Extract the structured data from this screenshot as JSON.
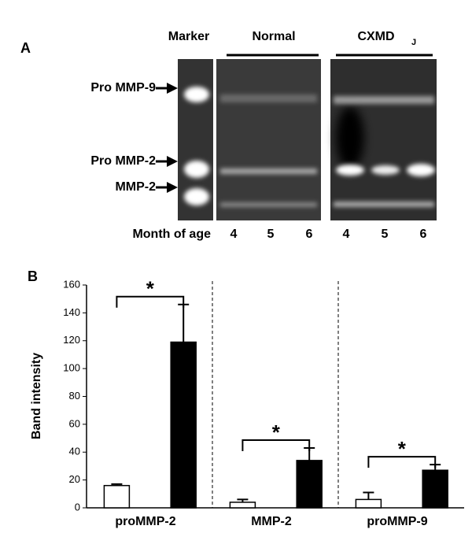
{
  "panel_a": {
    "label": "A",
    "marker": "Marker",
    "normal": "Normal",
    "cxmd": "CXMD",
    "cxmd_sub": "J",
    "bands": [
      "Pro MMP-9",
      "Pro MMP-2",
      "MMP-2"
    ],
    "month_label": "Month of age",
    "months": [
      4,
      5,
      6,
      4,
      5,
      6
    ]
  },
  "chart_data": {
    "type": "bar",
    "panel_label": "B",
    "y_label": "Band intensity",
    "categories": [
      "proMMP-2",
      "MMP-2",
      "proMMP-9"
    ],
    "series": [
      {
        "color": "#ffffff",
        "values": [
          16,
          4,
          6
        ],
        "errors": [
          1,
          2,
          5
        ]
      },
      {
        "color": "#000000",
        "values": [
          119,
          34,
          27
        ],
        "errors": [
          27,
          9,
          4
        ]
      }
    ],
    "annotations": [
      "*",
      "*",
      "*"
    ],
    "ylim": [
      0,
      160
    ],
    "yticks": [
      0,
      20,
      40,
      60,
      80,
      100,
      120,
      140,
      160
    ]
  }
}
